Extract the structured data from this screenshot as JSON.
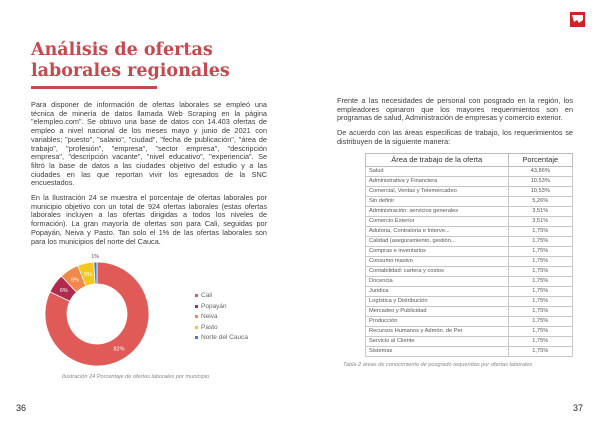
{
  "left_page": {
    "title": "Análisis de ofertas laborales regionales",
    "paragraph_1": "Para disponer de información de ofertas laborales se empleó una técnica de minería de datos llamada Web Scraping en la página \"elempleo.com\". Se obtuvo una base de datos con 14.403 ofertas de empleo a nivel nacional de los meses mayo y junio de 2021 con variables; \"puesto\", \"salario\", \"ciudad\", \"fecha de publicación\", \"área de trabajo\", \"profesión\", \"empresa\", \"sector empresa\", \"descripción empresa\", \"descripción vacante\", \"nivel educativo\", \"experiencia\". Se filtró la base de datos a las ciudades objetivo del estudio y a las ciudades en las que reportan vivir los egresados de la SNC encuestados.",
    "paragraph_2": "En la Ilustración 24 se muestra el porcentaje de ofertas laborales por municipio objetivo con un total de 924 ofertas laborales (estas ofertas laborales incluyen a las ofertas dirigidas a todos los niveles de formación). La gran mayoría de ofertas son para Cali, seguidas por Popayán, Neiva y Pasto. Tan solo el 1% de las ofertas laborales son para los municipios del norte del Cauca.",
    "caption": "Ilustración 24 Porcentaje de ofertas laborales por municipio",
    "page_number": "36"
  },
  "chart_data": {
    "type": "pie",
    "variant": "donut",
    "title": "Porcentaje de ofertas laborales por municipio",
    "categories": [
      "Cali",
      "Popayán",
      "Neiva",
      "Pasto",
      "Norte del Cauca"
    ],
    "values": [
      82,
      6,
      6,
      5,
      1
    ],
    "labels": [
      "82%",
      "6%",
      "6%",
      "5%",
      "1%"
    ],
    "colors": [
      "#e05a57",
      "#b02a50",
      "#f08a4b",
      "#f5c61e",
      "#4a7cc0"
    ],
    "legend": "right"
  },
  "right_page": {
    "paragraph_1": "Frente a las necesidades de personal con posgrado en la región, los empleadores opinaron que los mayores requerimientos son en programas de salud, Administración de empresas y comercio exterior.",
    "paragraph_2": "De acuerdo con las áreas especificas de trabajo, los requerimientos se distribuyen de la siguiente manera:",
    "table": {
      "headers": [
        "Área de trabajo de la oferta",
        "Porcentaje"
      ],
      "rows": [
        [
          "Salud",
          "43,86%"
        ],
        [
          "Administrativa y Financiera",
          "10,53%"
        ],
        [
          "Comercial, Ventas y Telemercadeo",
          "10,53%"
        ],
        [
          "Sin definir",
          "5,26%"
        ],
        [
          "Administración: servicios generales",
          "3,51%"
        ],
        [
          "Comercio Exterior",
          "3,51%"
        ],
        [
          "Adutoria, Contraloria e Interve...",
          "1,75%"
        ],
        [
          "Calidad (aseguramiento, gestión...",
          "1,75%"
        ],
        [
          "Compras e inventarios",
          "1,75%"
        ],
        [
          "Consumo masivo",
          "1,75%"
        ],
        [
          "Contabilidad: cartera y costos",
          "1,75%"
        ],
        [
          "Docencia",
          "1,75%"
        ],
        [
          "Juridica",
          "1,75%"
        ],
        [
          "Logística y Distribución",
          "1,75%"
        ],
        [
          "Mercadeo y Publicidad",
          "1,75%"
        ],
        [
          "Producción",
          "1,75%"
        ],
        [
          "Recursos Humanos y Admón. de Per",
          "1,75%"
        ],
        [
          "Servicio al Cliente",
          "1,75%"
        ],
        [
          "Sistemas",
          "1,75%"
        ]
      ]
    },
    "caption": "Tabla 2 áreas de conocimiento de posgrado requeridas por ofertas laborales",
    "page_number": "37"
  }
}
